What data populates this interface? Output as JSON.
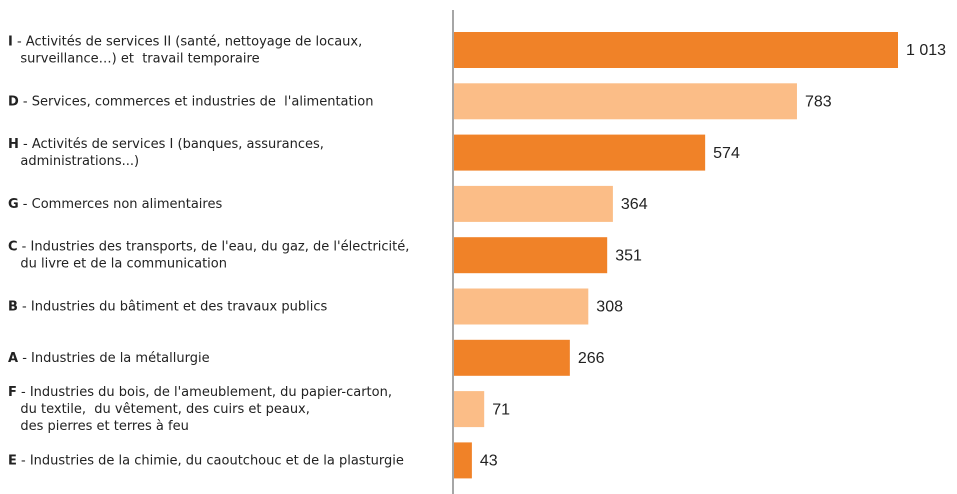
{
  "chart_data": {
    "type": "barh",
    "categories": [
      "I - Activités de services II (santé, nettoyage de locaux,\n   surveillance…) et  travail temporaire",
      "D - Services, commerces et industries de  l'alimentation",
      "H - Activités de services I (banques, assurances,\n   administrations...)",
      "G - Commerces non alimentaires",
      "C - Industries des transports, de l'eau, du gaz, de l'électricité,\n   du livre et de la communication",
      "B - Industries du bâtiment et des travaux publics",
      "A - Industries de la métallurgie",
      "F - Industries du bois, de l'ameublement, du papier-carton,\n   du textile,  du vêtement, des cuirs et peaux,\n   des pierres et terres à feu",
      "E - Industries de la chimie, du caoutchouc et de la plasturgie"
    ],
    "values": [
      1013,
      783,
      574,
      364,
      351,
      308,
      266,
      71,
      43
    ],
    "value_labels": [
      "1 013",
      "783",
      "574",
      "364",
      "351",
      "308",
      "266",
      "71",
      "43"
    ],
    "colors": [
      "#f08228",
      "#fbbd87",
      "#f08228",
      "#fbbd87",
      "#f08228",
      "#fbbd87",
      "#f08228",
      "#fbbd87",
      "#f08228"
    ]
  }
}
